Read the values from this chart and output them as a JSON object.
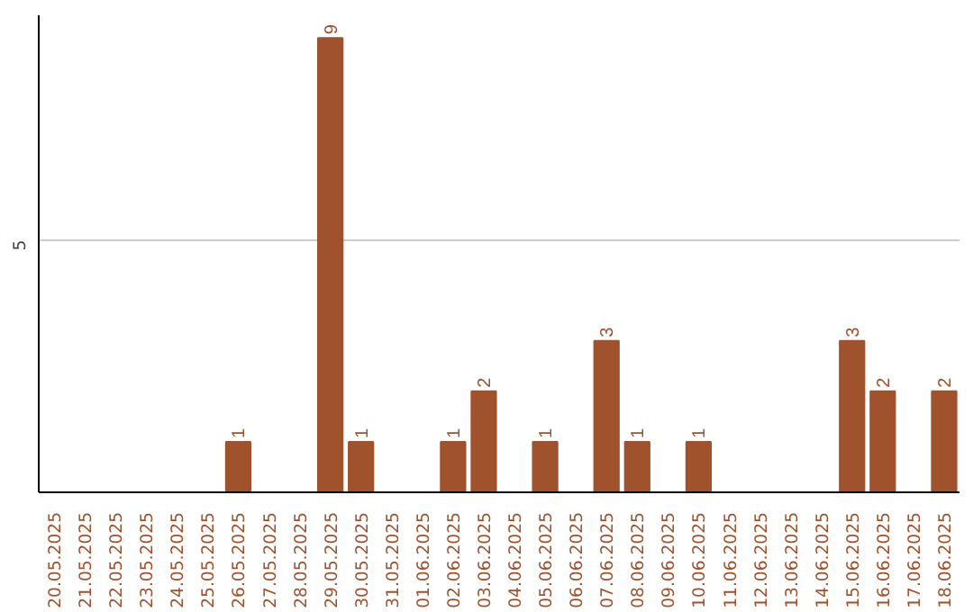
{
  "chart_data": {
    "type": "bar",
    "categories": [
      "20.05.2025",
      "21.05.2025",
      "22.05.2025",
      "23.05.2025",
      "24.05.2025",
      "25.05.2025",
      "26.05.2025",
      "27.05.2025",
      "28.05.2025",
      "29.05.2025",
      "30.05.2025",
      "31.05.2025",
      "01.06.2025",
      "02.06.2025",
      "03.06.2025",
      "04.06.2025",
      "05.06.2025",
      "06.06.2025",
      "07.06.2025",
      "08.06.2025",
      "09.06.2025",
      "10.06.2025",
      "11.06.2025",
      "12.06.2025",
      "13.06.2025",
      "14.06.2025",
      "15.06.2025",
      "16.06.2025",
      "17.06.2025",
      "18.06.2025"
    ],
    "values": [
      0,
      0,
      0,
      0,
      0,
      0,
      1,
      0,
      0,
      9,
      1,
      0,
      0,
      1,
      2,
      0,
      1,
      0,
      3,
      1,
      0,
      1,
      0,
      0,
      0,
      0,
      3,
      2,
      0,
      2
    ],
    "value_labels": [
      null,
      null,
      null,
      null,
      null,
      null,
      "1",
      null,
      null,
      "9",
      "1",
      null,
      null,
      "1",
      "2",
      null,
      "1",
      null,
      "3",
      "1",
      null,
      "1",
      null,
      null,
      null,
      null,
      "3",
      "2",
      null,
      "2"
    ],
    "color": "#a0522d",
    "ylim": [
      0,
      9.45
    ],
    "yticks": [
      5
    ],
    "grid": "y"
  }
}
